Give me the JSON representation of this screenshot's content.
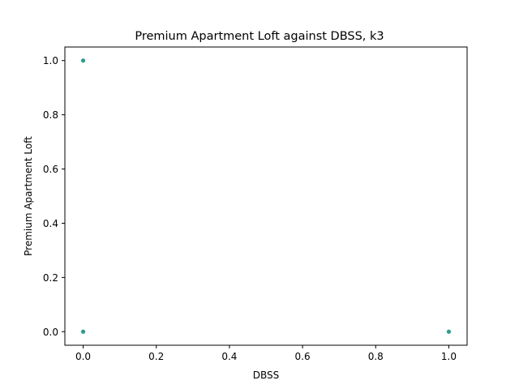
{
  "chart_data": {
    "type": "scatter",
    "title": "Premium Apartment Loft against DBSS, k3",
    "xlabel": "DBSS",
    "ylabel": "Premium Apartment Loft",
    "xlim": [
      -0.05,
      1.05
    ],
    "ylim": [
      -0.05,
      1.05
    ],
    "xticks": [
      0.0,
      0.2,
      0.4,
      0.6,
      0.8,
      1.0
    ],
    "yticks": [
      0.0,
      0.2,
      0.4,
      0.6,
      0.8,
      1.0
    ],
    "xtick_labels": [
      "0.0",
      "0.2",
      "0.4",
      "0.6",
      "0.8",
      "1.0"
    ],
    "ytick_labels": [
      "0.0",
      "0.2",
      "0.4",
      "0.6",
      "0.8",
      "1.0"
    ],
    "grid": false,
    "series": [
      {
        "color": "#2a9d8f",
        "points": [
          {
            "x": 0.0,
            "y": 1.0
          },
          {
            "x": 0.0,
            "y": 0.0
          },
          {
            "x": 1.0,
            "y": 0.0
          }
        ]
      }
    ]
  }
}
